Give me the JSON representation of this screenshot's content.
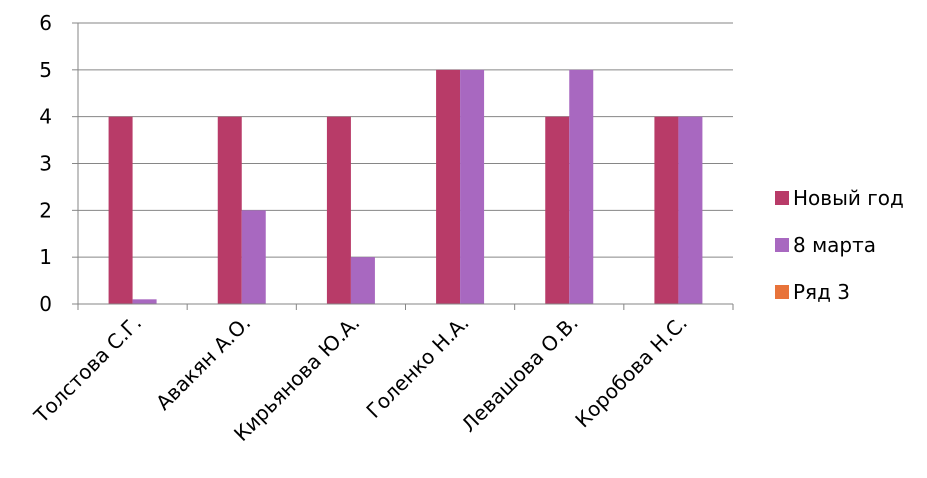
{
  "chart_data": {
    "type": "bar",
    "categories": [
      "Толстова С.Г.",
      "Авакян А.О.",
      "Кирьянова Ю.А.",
      "Голенко Н.А.",
      "Левашова О.В.",
      "Коробова Н.С."
    ],
    "series": [
      {
        "name": "Новый год",
        "values": [
          4,
          4,
          4,
          5,
          4,
          4
        ],
        "color": "#B83B68"
      },
      {
        "name": "8 марта",
        "values": [
          0.1,
          2,
          1,
          5,
          5,
          4
        ],
        "color": "#A868C0"
      },
      {
        "name": "Ряд 3",
        "values": [
          0,
          0,
          0,
          0,
          0,
          0
        ],
        "color": "#E8733A"
      }
    ],
    "yticks": [
      "0",
      "1",
      "2",
      "3",
      "4",
      "5",
      "6"
    ],
    "ylim": [
      0,
      6
    ],
    "grid": true,
    "legend_position": "right"
  }
}
